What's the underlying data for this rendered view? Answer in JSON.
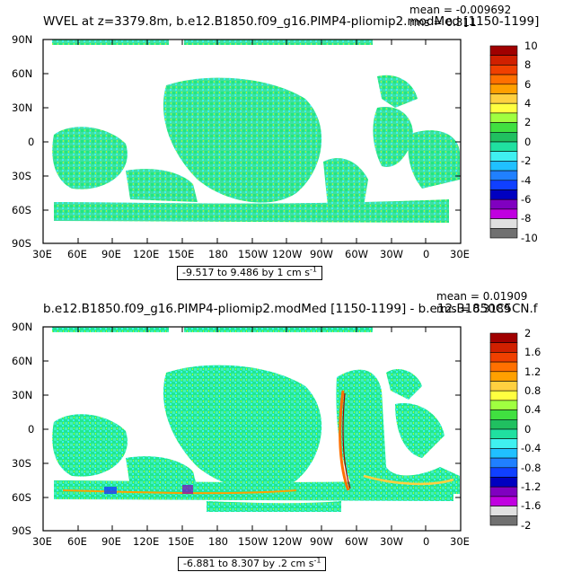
{
  "panels": [
    {
      "title": "WVEL at z=3379.8m, b.e12.B1850.f09_g16.PIMP4-pliomip2.modMed [1150-1199]",
      "mean_label": "mean = -0.009692",
      "rms_label": "rms = 0.311",
      "range": {
        "text": "-9.517 to 9.486 by 1 cm s",
        "exp": "-1"
      },
      "y_ticks": [
        "90N",
        "60N",
        "30N",
        "0",
        "30S",
        "60S",
        "90S"
      ],
      "x_ticks": [
        "30E",
        "60E",
        "90E",
        "120E",
        "150E",
        "180",
        "150W",
        "120W",
        "90W",
        "60W",
        "30W",
        "0",
        "30E"
      ],
      "colorbar": {
        "labels": [
          "10",
          "8",
          "6",
          "4",
          "2",
          "0",
          "-2",
          "-4",
          "-6",
          "-8",
          "-10"
        ],
        "colors": [
          "#a00000",
          "#d02000",
          "#f04000",
          "#ff7000",
          "#ffa000",
          "#ffd040",
          "#ffff40",
          "#a0ff40",
          "#40e040",
          "#20c060",
          "#20e0a0",
          "#40f0f0",
          "#20c0ff",
          "#2080ff",
          "#1040ff",
          "#0000c0",
          "#8000c0",
          "#c000e0",
          "#e0e0e0",
          "#707070"
        ]
      }
    },
    {
      "title": "b.e12.B1850.f09_g16.PIMP4-pliomip2.modMed [1150-1199] - b.e12.B1850C5CN.f",
      "mean_label": "mean = 0.01909",
      "rms_label": "rms = 0.3189",
      "range": {
        "text": "-6.881 to 8.307 by .2 cm s",
        "exp": "-1"
      },
      "y_ticks": [
        "90N",
        "60N",
        "30N",
        "0",
        "30S",
        "60S",
        "90S"
      ],
      "x_ticks": [
        "30E",
        "60E",
        "90E",
        "120E",
        "150E",
        "180",
        "150W",
        "120W",
        "90W",
        "60W",
        "30W",
        "0",
        "30E"
      ],
      "colorbar": {
        "labels": [
          "2",
          "1.6",
          "1.2",
          "0.8",
          "0.4",
          "0",
          "-0.4",
          "-0.8",
          "-1.2",
          "-1.6",
          "-2"
        ],
        "colors": [
          "#a00000",
          "#d02000",
          "#f04000",
          "#ff7000",
          "#ffa000",
          "#ffd040",
          "#ffff40",
          "#a0ff40",
          "#40e040",
          "#20c060",
          "#20e0a0",
          "#40f0f0",
          "#20c0ff",
          "#2080ff",
          "#1040ff",
          "#0000c0",
          "#8000c0",
          "#c000e0",
          "#e0e0e0",
          "#707070"
        ]
      }
    }
  ]
}
